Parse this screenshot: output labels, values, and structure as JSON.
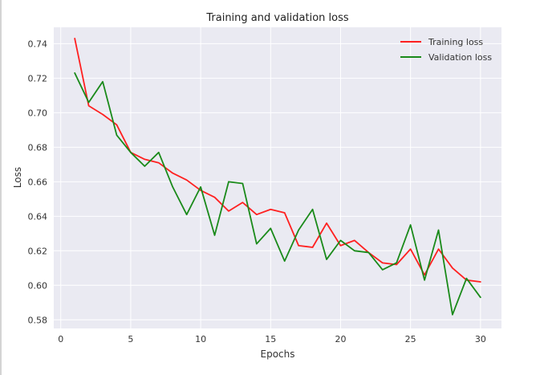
{
  "chart_data": {
    "type": "line",
    "title": "Training and validation loss",
    "xlabel": "Epochs",
    "ylabel": "Loss",
    "xlim": [
      -0.5,
      31.5
    ],
    "ylim": [
      0.575,
      0.7495
    ],
    "xticks": [
      0,
      5,
      10,
      15,
      20,
      25,
      30
    ],
    "yticks": [
      0.58,
      0.6,
      0.62,
      0.64,
      0.66,
      0.68,
      0.7,
      0.72,
      0.74
    ],
    "xtick_labels": [
      "0",
      "5",
      "10",
      "15",
      "20",
      "25",
      "30"
    ],
    "ytick_labels": [
      "0.58",
      "0.60",
      "0.62",
      "0.64",
      "0.66",
      "0.68",
      "0.70",
      "0.72",
      "0.74"
    ],
    "grid": true,
    "legend_position": "top-right",
    "x": [
      1,
      2,
      3,
      4,
      5,
      6,
      7,
      8,
      9,
      10,
      11,
      12,
      13,
      14,
      15,
      16,
      17,
      18,
      19,
      20,
      21,
      22,
      23,
      24,
      25,
      26,
      27,
      28,
      29,
      30
    ],
    "series": [
      {
        "name": "Training loss",
        "color": "#ff2020",
        "values": [
          0.743,
          0.704,
          0.699,
          0.693,
          0.677,
          0.673,
          0.671,
          0.665,
          0.661,
          0.655,
          0.651,
          0.643,
          0.648,
          0.641,
          0.644,
          0.642,
          0.623,
          0.622,
          0.636,
          0.623,
          0.626,
          0.619,
          0.613,
          0.612,
          0.621,
          0.606,
          0.621,
          0.61,
          0.603,
          0.602
        ]
      },
      {
        "name": "Validation loss",
        "color": "#1a8a1a",
        "values": [
          0.723,
          0.706,
          0.718,
          0.687,
          0.677,
          0.669,
          0.677,
          0.657,
          0.641,
          0.657,
          0.629,
          0.66,
          0.659,
          0.624,
          0.633,
          0.614,
          0.632,
          0.644,
          0.615,
          0.626,
          0.62,
          0.619,
          0.609,
          0.613,
          0.635,
          0.603,
          0.632,
          0.583,
          0.604,
          0.593
        ]
      }
    ]
  }
}
